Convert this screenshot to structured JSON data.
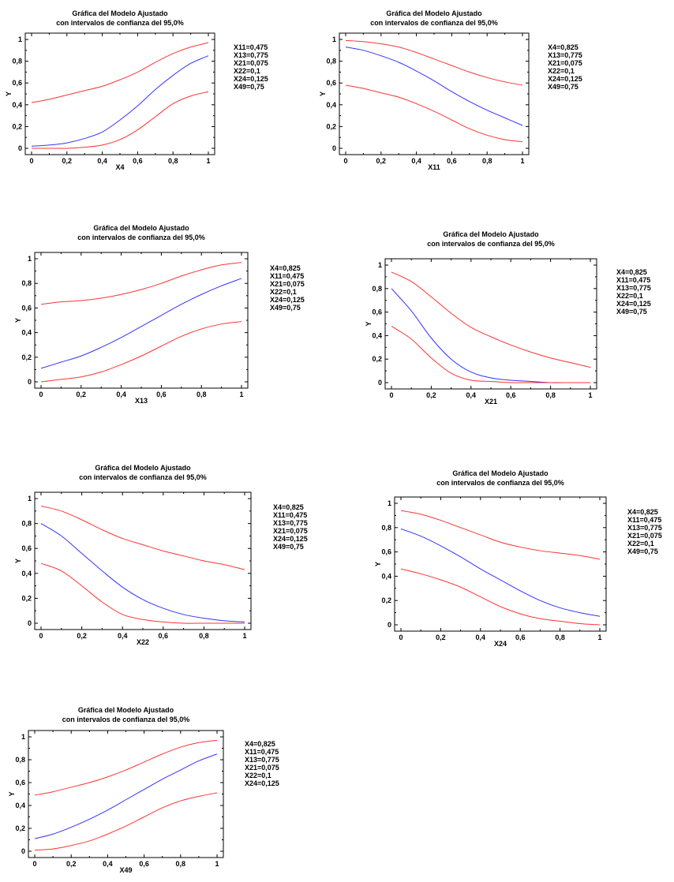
{
  "chart_data": [
    {
      "type": "line",
      "title": [
        "Gráfica del Modelo Ajustado",
        "con intervalos de confianza del 95,0%"
      ],
      "xlabel": "X4",
      "ylabel": "Y",
      "xlim": [
        0,
        1
      ],
      "ylim": [
        0,
        1
      ],
      "xticks": [
        "0",
        "0,2",
        "0,4",
        "0,6",
        "0,8",
        "1"
      ],
      "yticks": [
        "0",
        "0,2",
        "0,4",
        "0,6",
        "0,8",
        "1"
      ],
      "colors": {
        "fit": "#3333ff",
        "ci": "#ff3333"
      },
      "notes": [
        "X11=0,475",
        "X13=0,775",
        "X21=0,075",
        "X22=0,1",
        "X24=0,125",
        "X49=0,75"
      ],
      "x": [
        0,
        0.1,
        0.2,
        0.3,
        0.4,
        0.5,
        0.6,
        0.7,
        0.8,
        0.9,
        1.0
      ],
      "series": [
        {
          "role": "upper",
          "values": [
            0.42,
            0.45,
            0.49,
            0.53,
            0.57,
            0.63,
            0.7,
            0.79,
            0.87,
            0.93,
            0.97
          ]
        },
        {
          "role": "fit",
          "values": [
            0.02,
            0.03,
            0.05,
            0.09,
            0.15,
            0.26,
            0.39,
            0.54,
            0.67,
            0.78,
            0.85
          ]
        },
        {
          "role": "lower",
          "values": [
            0.0,
            0.0,
            0.0,
            0.01,
            0.03,
            0.08,
            0.17,
            0.29,
            0.41,
            0.48,
            0.52
          ]
        }
      ]
    },
    {
      "type": "line",
      "title": [
        "Gráfica del Modelo Ajustado",
        "con intervalos de confianza del 95,0%"
      ],
      "xlabel": "X11",
      "ylabel": "Y",
      "xlim": [
        0,
        1
      ],
      "ylim": [
        0,
        1
      ],
      "xticks": [
        "0",
        "0,2",
        "0,4",
        "0,6",
        "0,8",
        "1"
      ],
      "yticks": [
        "0",
        "0,2",
        "0,4",
        "0,6",
        "0,8",
        "1"
      ],
      "colors": {
        "fit": "#3333ff",
        "ci": "#ff3333"
      },
      "notes": [
        "X4=0,825",
        "X13=0,775",
        "X21=0,075",
        "X22=0,1",
        "X24=0,125",
        "X49=0,75"
      ],
      "x": [
        0,
        0.1,
        0.2,
        0.3,
        0.4,
        0.5,
        0.6,
        0.7,
        0.8,
        0.9,
        1.0
      ],
      "series": [
        {
          "role": "upper",
          "values": [
            0.99,
            0.98,
            0.96,
            0.93,
            0.88,
            0.82,
            0.76,
            0.7,
            0.65,
            0.61,
            0.58
          ]
        },
        {
          "role": "fit",
          "values": [
            0.93,
            0.9,
            0.85,
            0.79,
            0.71,
            0.62,
            0.52,
            0.43,
            0.35,
            0.28,
            0.21
          ]
        },
        {
          "role": "lower",
          "values": [
            0.58,
            0.55,
            0.51,
            0.47,
            0.41,
            0.34,
            0.26,
            0.18,
            0.12,
            0.08,
            0.06
          ]
        }
      ]
    },
    {
      "type": "line",
      "title": [
        "Gráfica del Modelo Ajustado",
        "con intervalos de confianza del 95,0%"
      ],
      "xlabel": "X13",
      "ylabel": "Y",
      "xlim": [
        0,
        1
      ],
      "ylim": [
        0,
        1
      ],
      "xticks": [
        "0",
        "0,2",
        "0,4",
        "0,6",
        "0,8",
        "1"
      ],
      "yticks": [
        "0",
        "0,2",
        "0,4",
        "0,6",
        "0,8",
        "1"
      ],
      "colors": {
        "fit": "#3333ff",
        "ci": "#ff3333"
      },
      "notes": [
        "X4=0,825",
        "X11=0,475",
        "X21=0,075",
        "X22=0,1",
        "X24=0,125",
        "X49=0,75"
      ],
      "x": [
        0,
        0.1,
        0.2,
        0.3,
        0.4,
        0.5,
        0.6,
        0.7,
        0.8,
        0.9,
        1.0
      ],
      "series": [
        {
          "role": "upper",
          "values": [
            0.63,
            0.65,
            0.66,
            0.68,
            0.71,
            0.75,
            0.8,
            0.86,
            0.91,
            0.95,
            0.97
          ]
        },
        {
          "role": "fit",
          "values": [
            0.11,
            0.16,
            0.21,
            0.28,
            0.36,
            0.45,
            0.54,
            0.63,
            0.71,
            0.78,
            0.84
          ]
        },
        {
          "role": "lower",
          "values": [
            0.0,
            0.02,
            0.04,
            0.08,
            0.14,
            0.21,
            0.29,
            0.37,
            0.43,
            0.47,
            0.49
          ]
        }
      ]
    },
    {
      "type": "line",
      "title": [
        "Gráfica del Modelo Ajustado",
        "con intervalos de confianza del 95,0%"
      ],
      "xlabel": "X21",
      "ylabel": "Y",
      "xlim": [
        0,
        1
      ],
      "ylim": [
        0,
        1
      ],
      "xticks": [
        "0",
        "0,2",
        "0,4",
        "0,6",
        "0,8",
        "1"
      ],
      "yticks": [
        "0",
        "0,2",
        "0,4",
        "0,6",
        "0,8",
        "1"
      ],
      "colors": {
        "fit": "#3333ff",
        "ci": "#ff3333"
      },
      "notes": [
        "X4=0,825",
        "X11=0,475",
        "X13=0,775",
        "X22=0,1",
        "X24=0,125",
        "X49=0,75"
      ],
      "x": [
        0,
        0.1,
        0.2,
        0.3,
        0.4,
        0.5,
        0.6,
        0.7,
        0.8,
        0.9,
        1.0
      ],
      "series": [
        {
          "role": "upper",
          "values": [
            0.94,
            0.86,
            0.73,
            0.59,
            0.47,
            0.39,
            0.32,
            0.26,
            0.21,
            0.17,
            0.13
          ]
        },
        {
          "role": "fit",
          "values": [
            0.8,
            0.61,
            0.38,
            0.2,
            0.09,
            0.04,
            0.02,
            0.01,
            0.0,
            0.0,
            0.0
          ]
        },
        {
          "role": "lower",
          "values": [
            0.48,
            0.37,
            0.21,
            0.08,
            0.02,
            0.01,
            0.0,
            0.0,
            0.0,
            0.0,
            0.0
          ]
        }
      ]
    },
    {
      "type": "line",
      "title": [
        "Gráfica del Modelo Ajustado",
        "con intervalos de confianza del 95,0%"
      ],
      "xlabel": "X22",
      "ylabel": "Y",
      "xlim": [
        0,
        1
      ],
      "ylim": [
        0,
        1
      ],
      "xticks": [
        "0",
        "0,2",
        "0,4",
        "0,6",
        "0,8",
        "1"
      ],
      "yticks": [
        "0",
        "0,2",
        "0,4",
        "0,6",
        "0,8",
        "1"
      ],
      "colors": {
        "fit": "#3333ff",
        "ci": "#ff3333"
      },
      "notes": [
        "X4=0,825",
        "X11=0,475",
        "X13=0,775",
        "X21=0,075",
        "X24=0,125",
        "X49=0,75"
      ],
      "x": [
        0,
        0.1,
        0.2,
        0.3,
        0.4,
        0.5,
        0.6,
        0.7,
        0.8,
        0.9,
        1.0
      ],
      "series": [
        {
          "role": "upper",
          "values": [
            0.94,
            0.9,
            0.83,
            0.75,
            0.68,
            0.63,
            0.58,
            0.54,
            0.5,
            0.47,
            0.43
          ]
        },
        {
          "role": "fit",
          "values": [
            0.8,
            0.7,
            0.56,
            0.42,
            0.29,
            0.19,
            0.12,
            0.07,
            0.04,
            0.02,
            0.01
          ]
        },
        {
          "role": "lower",
          "values": [
            0.48,
            0.42,
            0.3,
            0.17,
            0.07,
            0.03,
            0.01,
            0.0,
            0.0,
            0.0,
            0.0
          ]
        }
      ]
    },
    {
      "type": "line",
      "title": [
        "Gráfica del Modelo Ajustado",
        "con intervalos de confianza del 95,0%"
      ],
      "xlabel": "X24",
      "ylabel": "Y",
      "xlim": [
        0,
        1
      ],
      "ylim": [
        0,
        1
      ],
      "xticks": [
        "0",
        "0,2",
        "0,4",
        "0,6",
        "0,8",
        "1"
      ],
      "yticks": [
        "0",
        "0,2",
        "0,4",
        "0,6",
        "0,8",
        "1"
      ],
      "colors": {
        "fit": "#3333ff",
        "ci": "#ff3333"
      },
      "notes": [
        "X4=0,825",
        "X11=0,475",
        "X13=0,775",
        "X21=0,075",
        "X22=0,1",
        "X49=0,75"
      ],
      "x": [
        0,
        0.1,
        0.2,
        0.3,
        0.4,
        0.5,
        0.6,
        0.7,
        0.8,
        0.9,
        1.0
      ],
      "series": [
        {
          "role": "upper",
          "values": [
            0.94,
            0.91,
            0.86,
            0.8,
            0.74,
            0.68,
            0.64,
            0.61,
            0.59,
            0.57,
            0.54
          ]
        },
        {
          "role": "fit",
          "values": [
            0.79,
            0.73,
            0.65,
            0.56,
            0.46,
            0.37,
            0.28,
            0.2,
            0.14,
            0.1,
            0.07
          ]
        },
        {
          "role": "lower",
          "values": [
            0.46,
            0.42,
            0.37,
            0.31,
            0.23,
            0.15,
            0.09,
            0.05,
            0.03,
            0.01,
            0.0
          ]
        }
      ]
    },
    {
      "type": "line",
      "title": [
        "Gráfica del Modelo Ajustado",
        "con intervalos de confianza del 95,0%"
      ],
      "xlabel": "X49",
      "ylabel": "Y",
      "xlim": [
        0,
        1
      ],
      "ylim": [
        0,
        1
      ],
      "xticks": [
        "0",
        "0,2",
        "0,4",
        "0,6",
        "0,8",
        "1"
      ],
      "yticks": [
        "0",
        "0,2",
        "0,4",
        "0,6",
        "0,8",
        "1"
      ],
      "colors": {
        "fit": "#3333ff",
        "ci": "#ff3333"
      },
      "notes": [
        "X4=0,825",
        "X11=0,475",
        "X13=0,775",
        "X21=0,075",
        "X22=0,1",
        "X24=0,125"
      ],
      "x": [
        0,
        0.1,
        0.2,
        0.3,
        0.4,
        0.5,
        0.6,
        0.7,
        0.8,
        0.9,
        1.0
      ],
      "series": [
        {
          "role": "upper",
          "values": [
            0.49,
            0.52,
            0.56,
            0.6,
            0.65,
            0.71,
            0.78,
            0.85,
            0.91,
            0.95,
            0.97
          ]
        },
        {
          "role": "fit",
          "values": [
            0.11,
            0.15,
            0.21,
            0.28,
            0.36,
            0.45,
            0.54,
            0.63,
            0.71,
            0.79,
            0.85
          ]
        },
        {
          "role": "lower",
          "values": [
            0.01,
            0.02,
            0.05,
            0.09,
            0.15,
            0.22,
            0.3,
            0.38,
            0.44,
            0.48,
            0.51
          ]
        }
      ]
    }
  ]
}
